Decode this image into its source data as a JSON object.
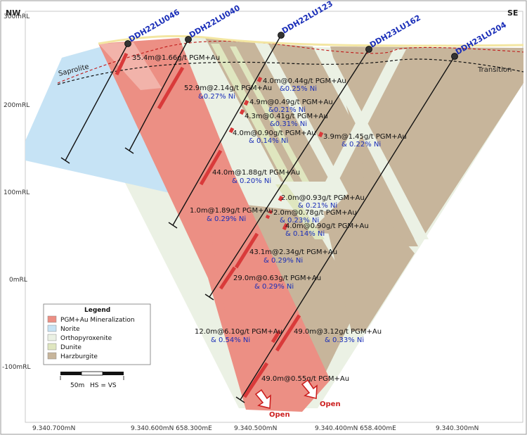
{
  "directions": {
    "left": "NW",
    "right": "SE"
  },
  "elevations": [
    "300mRL",
    "200mRL",
    "100mRL",
    "0mRL",
    "-100mRL"
  ],
  "northings": [
    "9.340.700mN",
    "9.340.600mN 658.300mE",
    "9.340.500mN",
    "9.340.400mN 658.400mE",
    "9.340.300mN"
  ],
  "zone_labels": {
    "saprolite": "Saprolite",
    "transition": "Transition"
  },
  "drillholes": [
    "DDH22LU046",
    "DDH22LU040",
    "DDH22LU123",
    "DDH23LU162",
    "DDH23LU204"
  ],
  "intercepts": [
    {
      "line1": "35.4m@1.66g/t PGM+Au",
      "line2": ""
    },
    {
      "line1": "52.9m@2.14g/t PGM+Au",
      "line2": "&0.27% Ni"
    },
    {
      "line1": "4.0m@0.44g/t PGM+Au",
      "line2": "&0.25% Ni"
    },
    {
      "line1": "4.9m@0.49g/t PGM+Au",
      "line2": "&0.21% Ni"
    },
    {
      "line1": "4.3m@0.41g/t PGM+Au",
      "line2": "&0.31% Ni"
    },
    {
      "line1": "4.0m@0.90g/t PGM+Au",
      "line2": "& 0.14% Ni"
    },
    {
      "line1": "3.9m@1.45g/t PGM+Au",
      "line2": "& 0.22% Ni"
    },
    {
      "line1": "44.0m@1.88g/t PGM+Au",
      "line2": "& 0.20% Ni"
    },
    {
      "line1": "2.0m@0.93g/t PGM+Au",
      "line2": "& 0.21% Ni"
    },
    {
      "line1": "1.0m@1.89g/t PGM+Au",
      "line2": "& 0.29% Ni"
    },
    {
      "line1": "2.0m@0.78g/t PGM+Au",
      "line2": "& 0.23% Ni"
    },
    {
      "line1": "4.0m@0.90g/t PGM+Au",
      "line2": "& 0.14% Ni"
    },
    {
      "line1": "43.1m@2.34g/t PGM+Au",
      "line2": "& 0.29% Ni"
    },
    {
      "line1": "29.0m@0.63g/t PGM+Au",
      "line2": "& 0.29% Ni"
    },
    {
      "line1": "12.0m@6.10g/t PGM+Au",
      "line2": "& 0.54% Ni"
    },
    {
      "line1": "49.0m@3.12g/t PGM+Au",
      "line2": "& 0.33% Ni"
    },
    {
      "line1": "49.0m@0.55g/t PGM+Au",
      "line2": ""
    }
  ],
  "open_labels": [
    "Open",
    "Open"
  ],
  "legend": {
    "title": "Legend",
    "items": [
      {
        "label": "PGM+Au Mineralization",
        "color": "#ec8f84"
      },
      {
        "label": "Norite",
        "color": "#c6e3f5"
      },
      {
        "label": "Orthopyroxenite",
        "color": "#ebf1e4"
      },
      {
        "label": "Dunite",
        "color": "#dfe6bf"
      },
      {
        "label": "Harzburgite",
        "color": "#c7b59b"
      }
    ]
  },
  "scale": {
    "length": "50m",
    "note": "HS = VS"
  },
  "colors": {
    "hole_label": "#1a2eb8",
    "open_arrow": "#cc1f1f",
    "collar": "#333333",
    "mineralization": "#ec8f84",
    "intercept_bar": "#d93a3a"
  }
}
